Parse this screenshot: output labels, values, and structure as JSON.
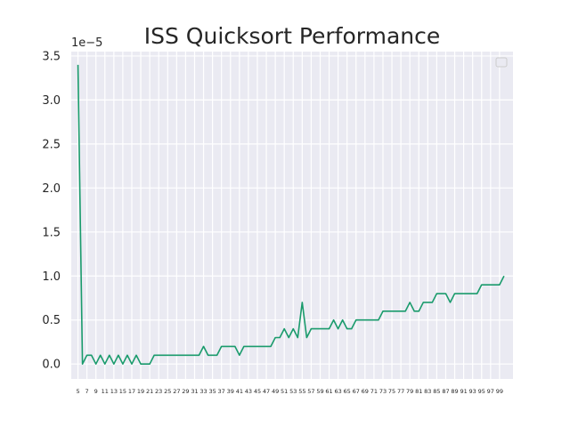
{
  "chart_data": {
    "type": "line",
    "title": "ISS Quicksort Performance",
    "xlabel": "",
    "ylabel": "",
    "y_offset_label": "1e−5",
    "grid": true,
    "legend": "top-right",
    "xlim": [
      3.5,
      102
    ],
    "ylim": [
      -0.17,
      3.55
    ],
    "y_ticks": [
      0.0,
      0.5,
      1.0,
      1.5,
      2.0,
      2.5,
      3.0,
      3.5
    ],
    "y_tick_labels": [
      "0.0",
      "0.5",
      "1.0",
      "1.5",
      "2.0",
      "2.5",
      "3.0",
      "3.5"
    ],
    "x_ticks": [
      5,
      7,
      9,
      11,
      13,
      15,
      17,
      19,
      21,
      23,
      25,
      27,
      29,
      31,
      33,
      35,
      37,
      39,
      41,
      43,
      45,
      47,
      49,
      51,
      53,
      55,
      57,
      59,
      61,
      63,
      65,
      67,
      69,
      71,
      73,
      75,
      77,
      79,
      81,
      83,
      85,
      87,
      89,
      91,
      93,
      95,
      97,
      99
    ],
    "series": [
      {
        "color": "#1a9b6c",
        "x": [
          5,
          6,
          7,
          8,
          9,
          10,
          11,
          12,
          13,
          14,
          15,
          16,
          17,
          18,
          19,
          20,
          21,
          22,
          23,
          24,
          25,
          26,
          27,
          28,
          29,
          30,
          31,
          32,
          33,
          34,
          35,
          36,
          37,
          38,
          39,
          40,
          41,
          42,
          43,
          44,
          45,
          46,
          47,
          48,
          49,
          50,
          51,
          52,
          53,
          54,
          55,
          56,
          57,
          58,
          59,
          60,
          61,
          62,
          63,
          64,
          65,
          66,
          67,
          68,
          69,
          70,
          71,
          72,
          73,
          74,
          75,
          76,
          77,
          78,
          79,
          80,
          81,
          82,
          83,
          84,
          85,
          86,
          87,
          88,
          89,
          90,
          91,
          92,
          93,
          94,
          95,
          96,
          97,
          98,
          99,
          100
        ],
        "y": [
          3.4,
          0.0,
          0.1,
          0.1,
          0.0,
          0.1,
          0.0,
          0.1,
          0.0,
          0.1,
          0.0,
          0.1,
          0.0,
          0.1,
          0.0,
          0.0,
          0.0,
          0.1,
          0.1,
          0.1,
          0.1,
          0.1,
          0.1,
          0.1,
          0.1,
          0.1,
          0.1,
          0.1,
          0.2,
          0.1,
          0.1,
          0.1,
          0.2,
          0.2,
          0.2,
          0.2,
          0.1,
          0.2,
          0.2,
          0.2,
          0.2,
          0.2,
          0.2,
          0.2,
          0.3,
          0.3,
          0.4,
          0.3,
          0.4,
          0.3,
          0.7,
          0.3,
          0.4,
          0.4,
          0.4,
          0.4,
          0.4,
          0.5,
          0.4,
          0.5,
          0.4,
          0.4,
          0.5,
          0.5,
          0.5,
          0.5,
          0.5,
          0.5,
          0.6,
          0.6,
          0.6,
          0.6,
          0.6,
          0.6,
          0.7,
          0.6,
          0.6,
          0.7,
          0.7,
          0.7,
          0.8,
          0.8,
          0.8,
          0.7,
          0.8,
          0.8,
          0.8,
          0.8,
          0.8,
          0.8,
          0.9,
          0.9,
          0.9,
          0.9,
          0.9,
          1.0
        ]
      }
    ]
  }
}
